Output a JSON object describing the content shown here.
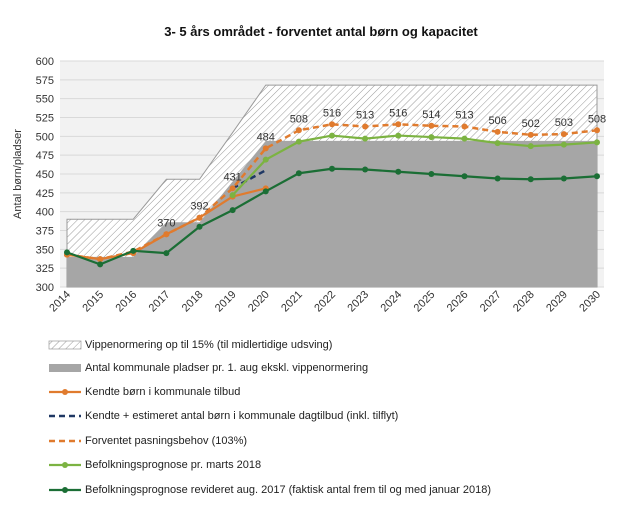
{
  "chart_data": {
    "type": "area",
    "title": "3- 5 års området - forventet antal børn og kapacitet",
    "ylabel": "Antal børn/pladser",
    "xlabel": "",
    "ylim": [
      300,
      600
    ],
    "yticks": [
      300,
      325,
      350,
      375,
      400,
      425,
      450,
      475,
      500,
      525,
      550,
      575,
      600
    ],
    "categories": [
      "2014",
      "2015",
      "2016",
      "2017",
      "2018",
      "2019",
      "2020",
      "2021",
      "2022",
      "2023",
      "2024",
      "2025",
      "2026",
      "2027",
      "2028",
      "2029",
      "2030"
    ],
    "grid": "horizontal",
    "legend_position": "bottom",
    "series": [
      {
        "name": "Vippenormering op til 15% (til midlertidige udsving)",
        "kind": "hatched-area",
        "color": "#9a9a9a",
        "values": [
          390,
          390,
          390,
          443,
          443,
          505,
          568,
          568,
          568,
          568,
          568,
          568,
          568,
          568,
          568,
          568,
          568
        ]
      },
      {
        "name": "Antal kommunale pladser pr. 1. aug ekskl. vippenormering",
        "kind": "area",
        "color": "#a6a6a6",
        "values": [
          340,
          340,
          340,
          386,
          386,
          440,
          494,
          494,
          494,
          494,
          494,
          494,
          494,
          494,
          494,
          494,
          494
        ]
      },
      {
        "name": "Kendte børn i kommunale tilbud",
        "kind": "line",
        "color": "#e07b2e",
        "dashed": false,
        "values": [
          343,
          337,
          345,
          370,
          392,
          420,
          431,
          null,
          null,
          null,
          null,
          null,
          null,
          null,
          null,
          null,
          null
        ]
      },
      {
        "name": "Kendte + estimeret antal børn i kommunale dagtilbud (inkl. tilflyt)",
        "kind": "line",
        "color": "#1f3864",
        "dashed": true,
        "values": [
          null,
          null,
          null,
          null,
          null,
          431,
          455,
          null,
          null,
          null,
          null,
          null,
          null,
          null,
          null,
          null,
          null
        ]
      },
      {
        "name": "Forventet pasningsbehov (103%)",
        "kind": "line",
        "color": "#e07b2e",
        "dashed": true,
        "values": [
          343,
          337,
          347,
          370,
          392,
          431,
          484,
          508,
          516,
          513,
          516,
          514,
          513,
          506,
          502,
          503,
          508
        ],
        "labels": [
          "",
          "",
          "",
          "370",
          "392",
          "431",
          "484",
          "508",
          "516",
          "513",
          "516",
          "514",
          "513",
          "506",
          "502",
          "503",
          "508"
        ]
      },
      {
        "name": "Befolkningsprognose pr. marts 2018",
        "kind": "line",
        "color": "#7cb342",
        "dashed": false,
        "values": [
          null,
          null,
          null,
          null,
          null,
          422,
          469,
          493,
          501,
          497,
          501,
          499,
          497,
          491,
          487,
          489,
          492
        ]
      },
      {
        "name": "Befolkningsprognose revideret aug. 2017 (faktisk antal frem til og med januar 2018)",
        "kind": "line",
        "color": "#1b6e35",
        "dashed": false,
        "values": [
          346,
          330,
          348,
          345,
          380,
          402,
          427,
          451,
          457,
          456,
          453,
          450,
          447,
          444,
          443,
          444,
          447
        ]
      }
    ]
  }
}
